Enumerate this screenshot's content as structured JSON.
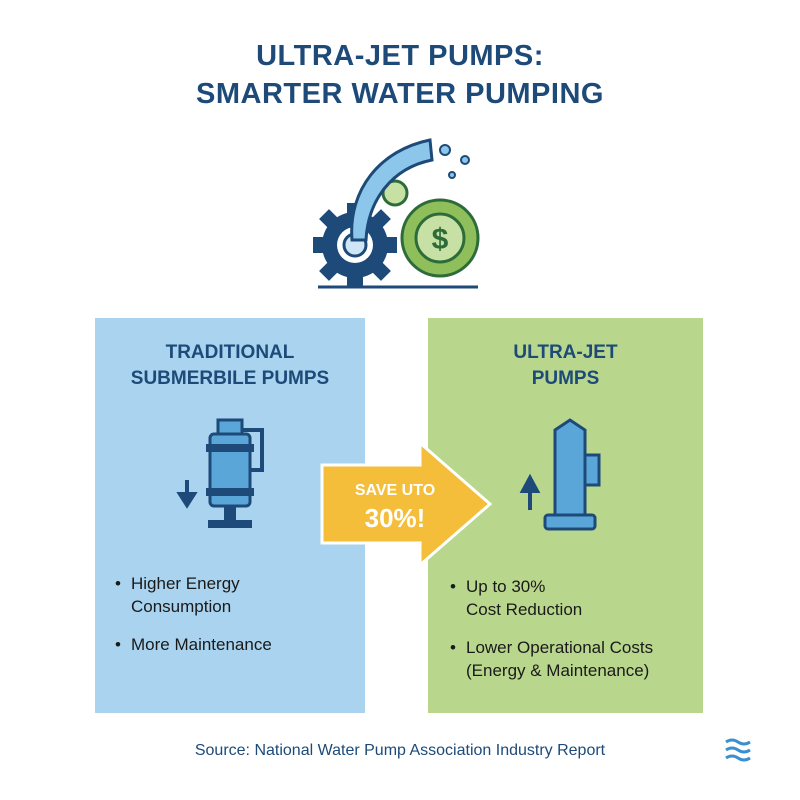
{
  "header": {
    "title": [
      "ULTRA-JET PUMPS:",
      "SMARTER WATER PUMPING"
    ]
  },
  "left_panel": {
    "title": [
      "TRADITIONAL",
      "SUBMERBILE PUMPS"
    ],
    "bullets": [
      [
        "Higher Energy",
        "Consumption"
      ],
      [
        "More Maintenance"
      ]
    ]
  },
  "arrow": {
    "label": [
      "SAVE UTO",
      "30%!"
    ]
  },
  "right_panel": {
    "title": [
      "ULTRA-JET",
      "PUMPS"
    ],
    "bullets": [
      [
        "Up to 30%",
        "Cost Reduction"
      ],
      [
        "Lower Operational Costs",
        "(Energy & Maintenance)"
      ]
    ]
  },
  "footer": {
    "source": "Source: National Water Pump Association Industry Report"
  }
}
